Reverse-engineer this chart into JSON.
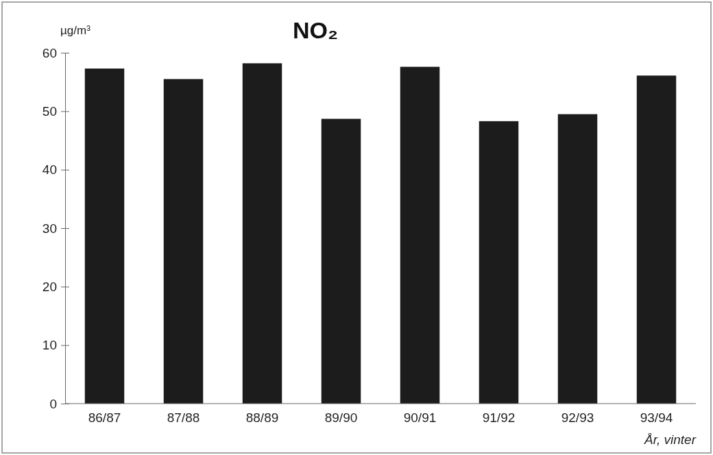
{
  "chart_data": {
    "type": "bar",
    "title": "NO₂",
    "ylabel": "µg/m³",
    "xlabel": "År, vinter",
    "categories": [
      "86/87",
      "87/88",
      "88/89",
      "89/90",
      "90/91",
      "91/92",
      "92/93",
      "93/94"
    ],
    "values": [
      57.3,
      55.5,
      58.2,
      48.7,
      57.6,
      48.3,
      49.5,
      56.1
    ],
    "color": "#1c1c1c",
    "ylim": [
      0,
      60
    ],
    "yticks": [
      0,
      10,
      20,
      30,
      40,
      50,
      60
    ],
    "grid": false
  }
}
